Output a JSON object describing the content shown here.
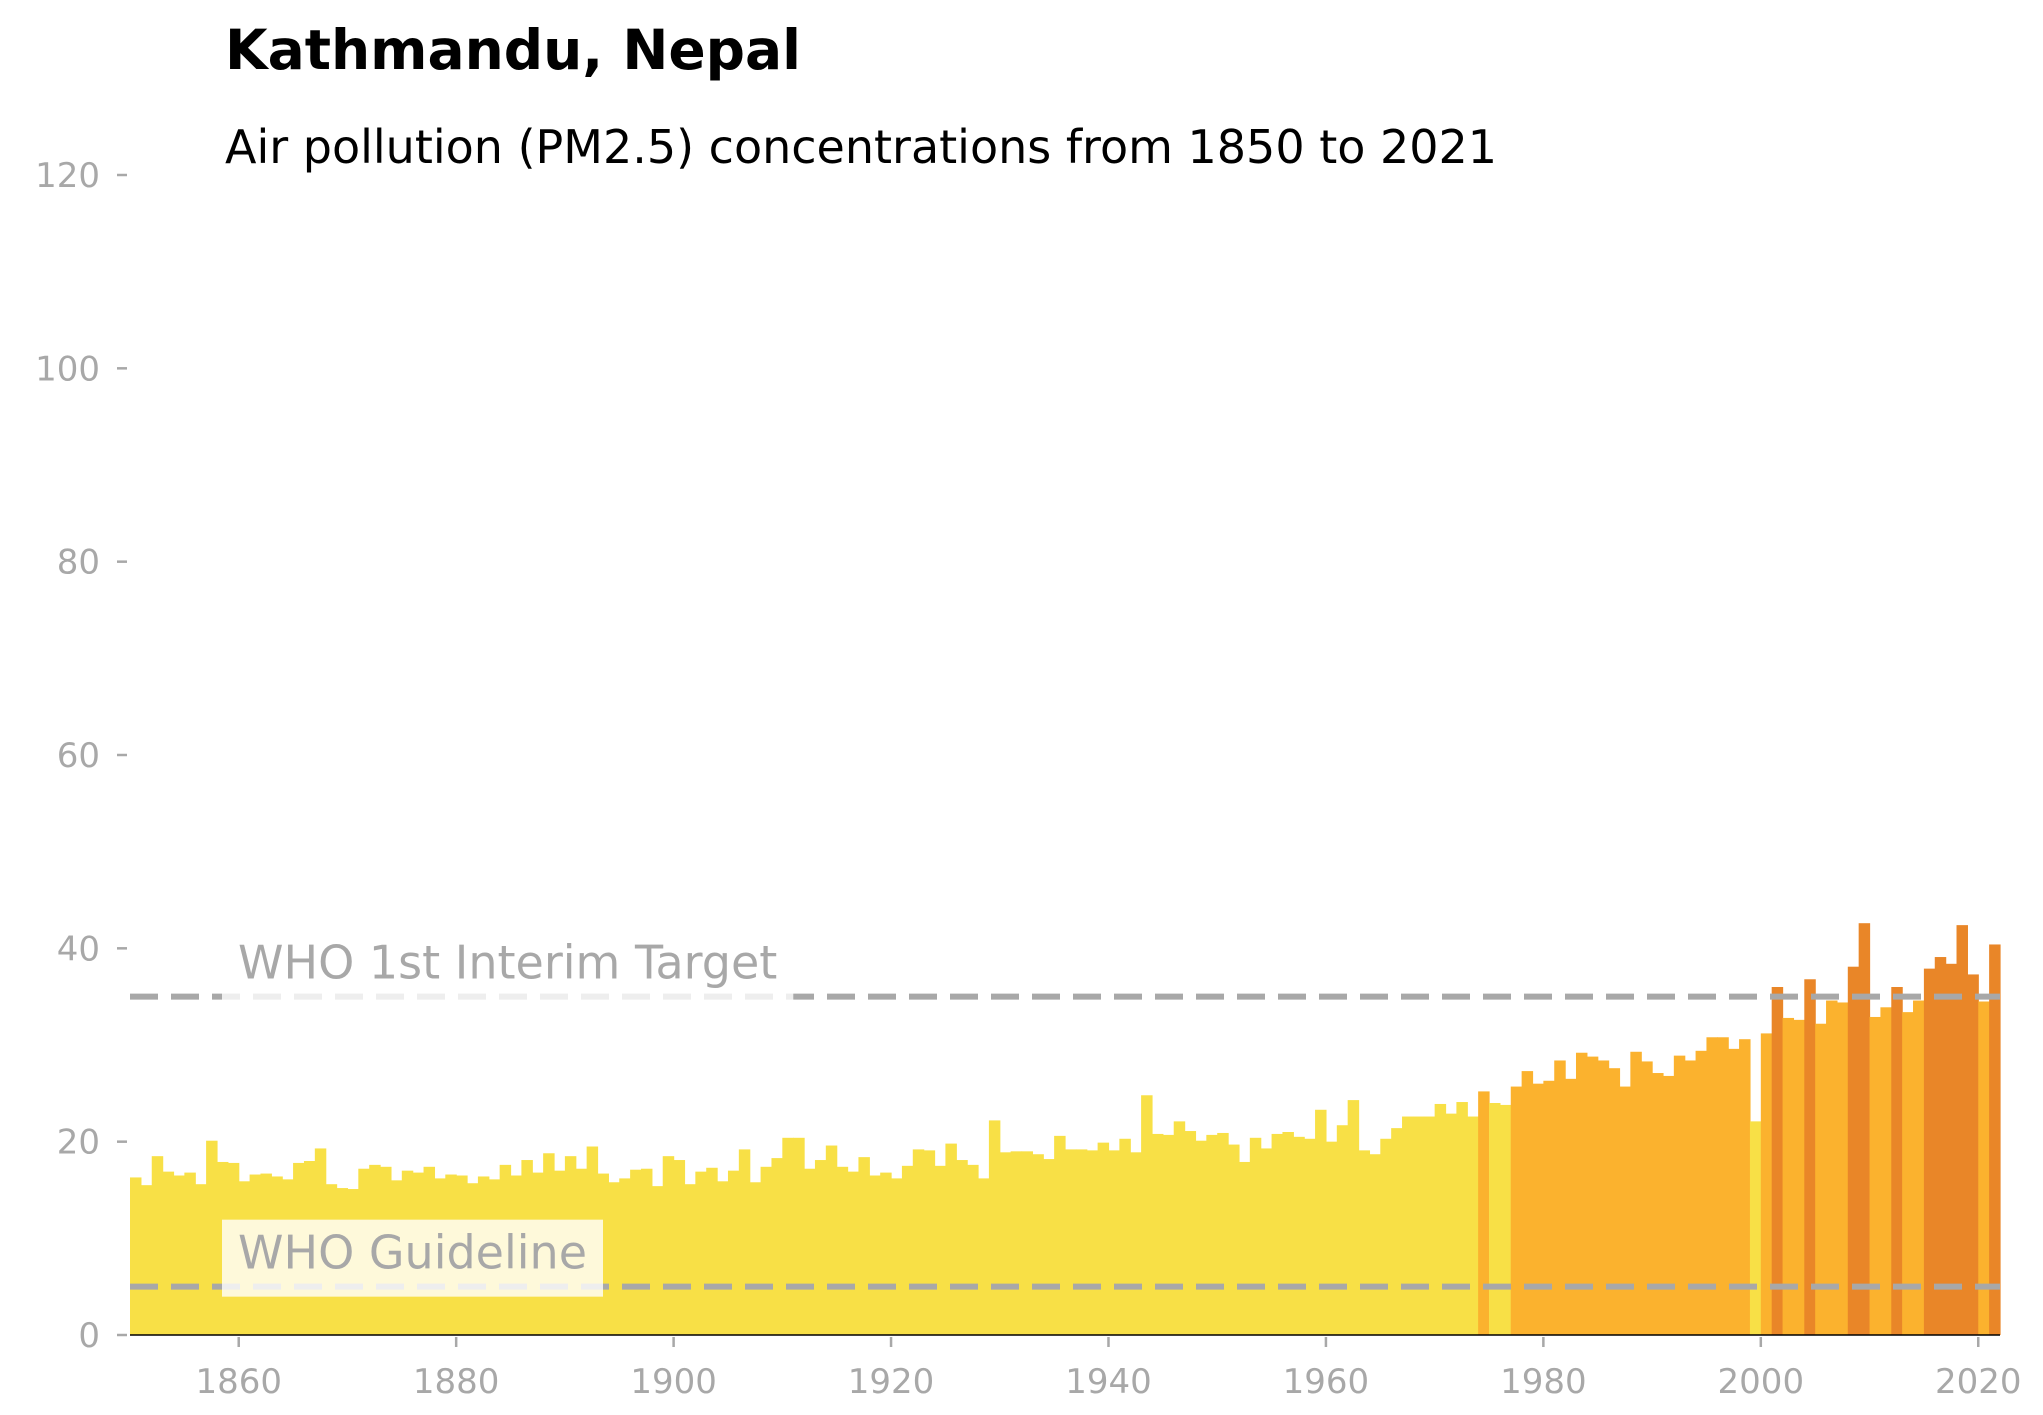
{
  "title": "Kathmandu, Nepal",
  "subtitle": "Air pollution (PM2.5) concentrations from 1850 to 2021",
  "colors": {
    "below_interim": "#f8e046",
    "near_interim": "#fbb22e",
    "above_interim": "#e98628",
    "reference_line": "#a8a8a8",
    "tick_text": "#a8a8a8"
  },
  "chart_data": {
    "type": "bar",
    "title": "Kathmandu, Nepal",
    "subtitle": "Air pollution (PM2.5) concentrations from 1850 to 2021",
    "xlabel": "",
    "ylabel": "",
    "xlim": [
      1850,
      2022
    ],
    "ylim": [
      0,
      120
    ],
    "x_ticks": [
      1860,
      1880,
      1900,
      1920,
      1940,
      1960,
      1980,
      2000,
      2020
    ],
    "y_ticks": [
      0,
      20,
      40,
      60,
      80,
      100,
      120
    ],
    "grid": false,
    "x": [
      1850,
      1851,
      1852,
      1853,
      1854,
      1855,
      1856,
      1857,
      1858,
      1859,
      1860,
      1861,
      1862,
      1863,
      1864,
      1865,
      1866,
      1867,
      1868,
      1869,
      1870,
      1871,
      1872,
      1873,
      1874,
      1875,
      1876,
      1877,
      1878,
      1879,
      1880,
      1881,
      1882,
      1883,
      1884,
      1885,
      1886,
      1887,
      1888,
      1889,
      1890,
      1891,
      1892,
      1893,
      1894,
      1895,
      1896,
      1897,
      1898,
      1899,
      1900,
      1901,
      1902,
      1903,
      1904,
      1905,
      1906,
      1907,
      1908,
      1909,
      1910,
      1911,
      1912,
      1913,
      1914,
      1915,
      1916,
      1917,
      1918,
      1919,
      1920,
      1921,
      1922,
      1923,
      1924,
      1925,
      1926,
      1927,
      1928,
      1929,
      1930,
      1931,
      1932,
      1933,
      1934,
      1935,
      1936,
      1937,
      1938,
      1939,
      1940,
      1941,
      1942,
      1943,
      1944,
      1945,
      1946,
      1947,
      1948,
      1949,
      1950,
      1951,
      1952,
      1953,
      1954,
      1955,
      1956,
      1957,
      1958,
      1959,
      1960,
      1961,
      1962,
      1963,
      1964,
      1965,
      1966,
      1967,
      1968,
      1969,
      1970,
      1971,
      1972,
      1973,
      1974,
      1975,
      1976,
      1977,
      1978,
      1979,
      1980,
      1981,
      1982,
      1983,
      1984,
      1985,
      1986,
      1987,
      1988,
      1989,
      1990,
      1991,
      1992,
      1993,
      1994,
      1995,
      1996,
      1997,
      1998,
      1999,
      2000,
      2001,
      2002,
      2003,
      2004,
      2005,
      2006,
      2007,
      2008,
      2009,
      2010,
      2011,
      2012,
      2013,
      2014,
      2015,
      2016,
      2017,
      2018,
      2019,
      2020,
      2021
    ],
    "values": [
      16.3,
      15.5,
      18.5,
      16.9,
      16.5,
      16.8,
      15.6,
      20.1,
      17.9,
      17.8,
      15.9,
      16.6,
      16.7,
      16.4,
      16.1,
      17.8,
      18.0,
      19.3,
      15.6,
      15.2,
      15.1,
      17.2,
      17.6,
      17.4,
      16.0,
      17.0,
      16.8,
      17.4,
      16.2,
      16.6,
      16.5,
      15.7,
      16.4,
      16.1,
      17.6,
      16.5,
      18.1,
      16.8,
      18.8,
      17.0,
      18.5,
      17.2,
      19.5,
      16.7,
      15.8,
      16.2,
      17.1,
      17.2,
      15.4,
      18.5,
      18.1,
      15.6,
      16.9,
      17.3,
      15.9,
      17.0,
      19.2,
      15.8,
      17.4,
      18.3,
      20.4,
      20.4,
      17.2,
      18.1,
      19.6,
      17.4,
      16.9,
      18.4,
      16.5,
      16.8,
      16.2,
      17.5,
      19.2,
      19.1,
      17.5,
      19.8,
      18.1,
      17.6,
      16.2,
      22.2,
      18.9,
      19.0,
      19.0,
      18.7,
      18.2,
      20.6,
      19.2,
      19.2,
      19.1,
      19.9,
      19.1,
      20.3,
      18.9,
      24.8,
      20.8,
      20.7,
      22.1,
      21.1,
      20.1,
      20.7,
      20.9,
      19.7,
      17.9,
      20.4,
      19.3,
      20.8,
      21.0,
      20.5,
      20.3,
      23.3,
      20.0,
      21.7,
      24.3,
      19.1,
      18.7,
      20.3,
      21.4,
      22.6,
      22.6,
      22.6,
      23.9,
      22.9,
      24.1,
      22.6,
      25.2,
      24.0,
      23.8,
      25.7,
      27.3,
      26.0,
      26.3,
      28.4,
      26.5,
      29.2,
      28.8,
      28.4,
      27.6,
      25.7,
      29.3,
      28.3,
      27.1,
      26.8,
      28.9,
      28.4,
      29.4,
      30.8,
      30.8,
      29.6,
      30.6,
      22.1,
      31.2,
      36.0,
      32.8,
      32.6,
      36.8,
      32.2,
      34.6,
      34.4,
      38.1,
      42.6,
      32.9,
      33.9,
      36.0,
      33.4,
      34.6,
      37.9,
      39.1,
      38.4,
      42.4,
      37.3,
      34.5,
      40.4
    ],
    "reference_lines": [
      {
        "label": "WHO 1st Interim Target",
        "value": 35
      },
      {
        "label": "WHO Guideline",
        "value": 5
      }
    ]
  }
}
